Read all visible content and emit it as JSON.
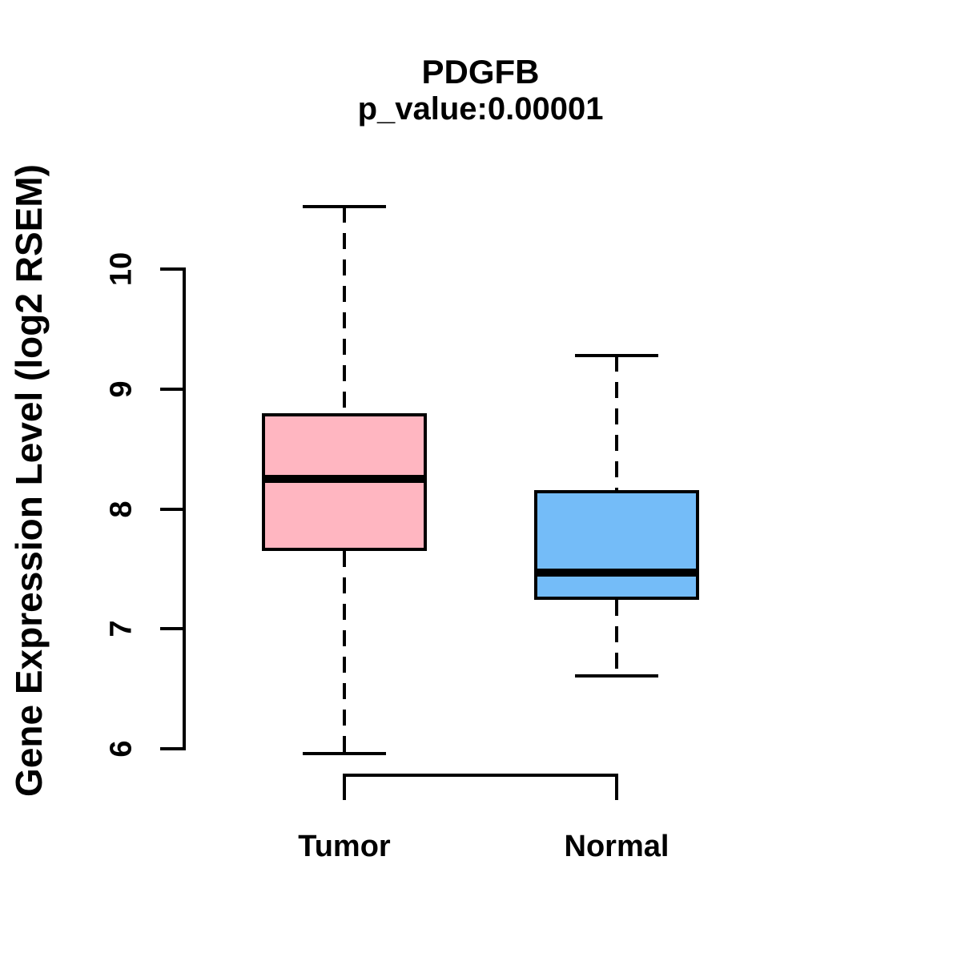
{
  "chart_data": {
    "type": "boxplot",
    "title": "PDGFB",
    "subtitle": "p_value:0.00001",
    "ylabel": "Gene Expression Level (log2 RSEM)",
    "xlabel": "",
    "ylim": [
      6,
      10
    ],
    "yticks": [
      "10",
      "9",
      "8",
      "7",
      "6"
    ],
    "ytick_values": [
      10,
      9,
      8,
      7,
      6
    ],
    "grid": false,
    "legend": "none",
    "categories": [
      "Tumor",
      "Normal"
    ],
    "series": [
      {
        "name": "Tumor",
        "fill_color": "#FFB6C1",
        "whisker_low": 5.96,
        "q1": 7.65,
        "median": 8.25,
        "q3": 8.8,
        "whisker_high": 10.52
      },
      {
        "name": "Normal",
        "fill_color": "#74BCF8",
        "whisker_low": 6.61,
        "q1": 7.24,
        "median": 7.47,
        "q3": 8.16,
        "whisker_high": 9.28
      }
    ],
    "line_color": "#000000"
  }
}
